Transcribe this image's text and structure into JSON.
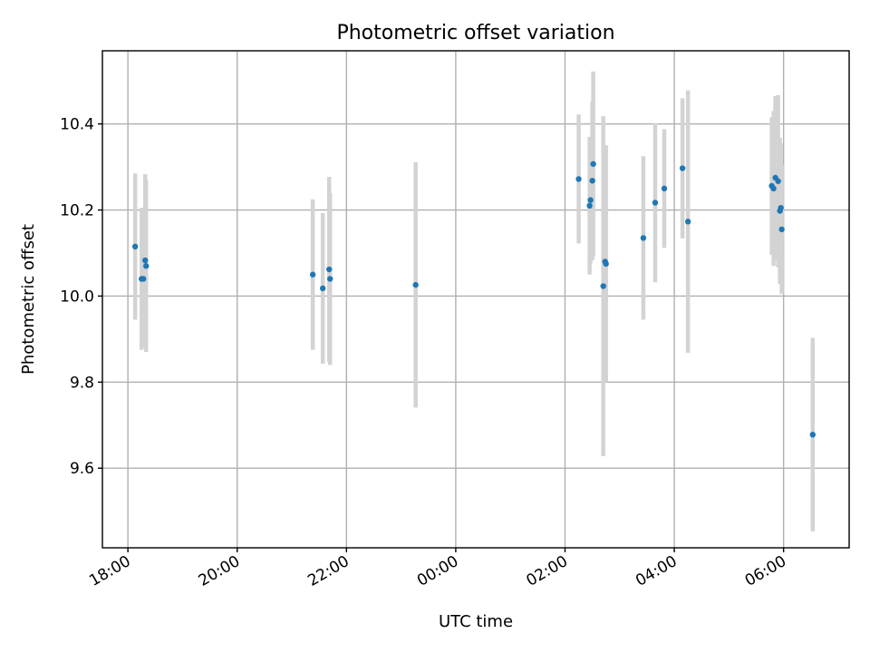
{
  "chart_data": {
    "type": "scatter",
    "title": "Photometric offset variation",
    "xlabel": "UTC time",
    "ylabel": "Photometric offset",
    "x_axis_kind": "time",
    "xlim": [
      "17:32",
      "07:12"
    ],
    "ylim": [
      9.415,
      10.57
    ],
    "grid": true,
    "x_ticks": [
      {
        "t": "18:00",
        "label": "18:00"
      },
      {
        "t": "20:00",
        "label": "20:00"
      },
      {
        "t": "22:00",
        "label": "22:00"
      },
      {
        "t": "00:00",
        "label": "00:00"
      },
      {
        "t": "02:00",
        "label": "02:00"
      },
      {
        "t": "04:00",
        "label": "04:00"
      },
      {
        "t": "06:00",
        "label": "06:00"
      }
    ],
    "y_ticks": [
      {
        "v": 9.6,
        "label": "9.6"
      },
      {
        "v": 9.8,
        "label": "9.8"
      },
      {
        "v": 10.0,
        "label": "10.0"
      },
      {
        "v": 10.2,
        "label": "10.2"
      },
      {
        "v": 10.4,
        "label": "10.4"
      }
    ],
    "points": [
      {
        "t": "18:08",
        "y": 10.115,
        "err": 0.17
      },
      {
        "t": "18:15",
        "y": 10.04,
        "err": 0.165
      },
      {
        "t": "18:17",
        "y": 10.04,
        "err": 0.16
      },
      {
        "t": "18:19",
        "y": 10.083,
        "err": 0.2
      },
      {
        "t": "18:20",
        "y": 10.07,
        "err": 0.2
      },
      {
        "t": "21:23",
        "y": 10.05,
        "err": 0.175
      },
      {
        "t": "21:34",
        "y": 10.018,
        "err": 0.175
      },
      {
        "t": "21:41",
        "y": 10.062,
        "err": 0.215
      },
      {
        "t": "21:42",
        "y": 10.04,
        "err": 0.2
      },
      {
        "t": "23:16",
        "y": 10.026,
        "err": 0.285
      },
      {
        "t": "02:15",
        "y": 10.272,
        "err": 0.15
      },
      {
        "t": "02:27",
        "y": 10.21,
        "err": 0.16
      },
      {
        "t": "02:28",
        "y": 10.223,
        "err": 0.147
      },
      {
        "t": "02:30",
        "y": 10.268,
        "err": 0.185
      },
      {
        "t": "02:31",
        "y": 10.307,
        "err": 0.215
      },
      {
        "t": "02:42",
        "y": 10.023,
        "err": 0.395
      },
      {
        "t": "02:44",
        "y": 10.08,
        "err": 0.27
      },
      {
        "t": "02:45",
        "y": 10.075,
        "err": 0.275
      },
      {
        "t": "03:26",
        "y": 10.135,
        "err": 0.19
      },
      {
        "t": "03:39",
        "y": 10.217,
        "err": 0.185
      },
      {
        "t": "03:49",
        "y": 10.25,
        "err": 0.138
      },
      {
        "t": "04:09",
        "y": 10.297,
        "err": 0.163
      },
      {
        "t": "04:15",
        "y": 10.173,
        "err": 0.305
      },
      {
        "t": "05:47",
        "y": 10.256,
        "err": 0.16
      },
      {
        "t": "05:49",
        "y": 10.25,
        "err": 0.18
      },
      {
        "t": "05:51",
        "y": 10.275,
        "err": 0.19
      },
      {
        "t": "05:54",
        "y": 10.267,
        "err": 0.2
      },
      {
        "t": "05:56",
        "y": 10.198,
        "err": 0.17
      },
      {
        "t": "05:57",
        "y": 10.205,
        "err": 0.15
      },
      {
        "t": "05:58",
        "y": 10.155,
        "err": 0.15
      },
      {
        "t": "06:32",
        "y": 9.678,
        "err": 0.225
      }
    ]
  }
}
